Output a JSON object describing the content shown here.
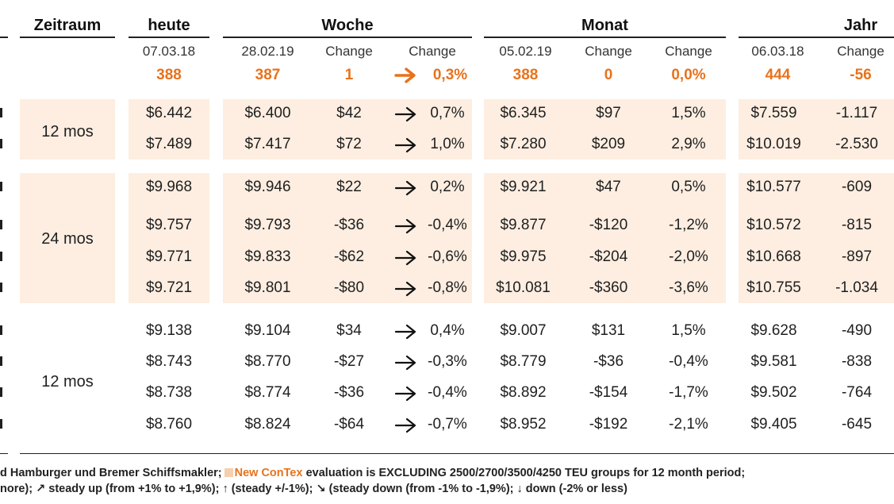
{
  "headers": {
    "zeitraum": "Zeitraum",
    "heute": "heute",
    "woche": "Woche",
    "monat": "Monat",
    "jahr": "Jahr"
  },
  "sub_headers": {
    "heute_date": "07.03.18",
    "woche_date": "28.02.19",
    "woche_change1": "Change",
    "woche_change2": "Change",
    "monat_date": "05.02.19",
    "monat_change1": "Change",
    "monat_change2": "Change",
    "jahr_date": "06.03.18",
    "jahr_change": "Change"
  },
  "index_row": {
    "heute": "388",
    "woche": "387",
    "woche_change": "1",
    "woche_pct": "0,3%",
    "monat": "388",
    "monat_change": "0",
    "monat_pct": "0,0%",
    "jahr": "444",
    "jahr_change": "-56"
  },
  "groups": [
    {
      "period": "12 mos",
      "shaded": true,
      "rows": [
        {
          "heute": "$6.442",
          "woche": "$6.400",
          "woche_change": "$42",
          "woche_pct": "0,7%",
          "monat": "$6.345",
          "monat_change": "$97",
          "monat_pct": "1,5%",
          "jahr": "$7.559",
          "jahr_change": "-1.117"
        },
        {
          "heute": "$7.489",
          "woche": "$7.417",
          "woche_change": "$72",
          "woche_pct": "1,0%",
          "monat": "$7.280",
          "monat_change": "$209",
          "monat_pct": "2,9%",
          "jahr": "$10.019",
          "jahr_change": "-2.530"
        }
      ]
    },
    {
      "period": "24 mos",
      "shaded": true,
      "rows": [
        {
          "heute": "$9.968",
          "woche": "$9.946",
          "woche_change": "$22",
          "woche_pct": "0,2%",
          "monat": "$9.921",
          "monat_change": "$47",
          "monat_pct": "0,5%",
          "jahr": "$10.577",
          "jahr_change": "-609"
        },
        {
          "heute": "$9.757",
          "woche": "$9.793",
          "woche_change": "-$36",
          "woche_pct": "-0,4%",
          "monat": "$9.877",
          "monat_change": "-$120",
          "monat_pct": "-1,2%",
          "jahr": "$10.572",
          "jahr_change": "-815"
        },
        {
          "heute": "$9.771",
          "woche": "$9.833",
          "woche_change": "-$62",
          "woche_pct": "-0,6%",
          "monat": "$9.975",
          "monat_change": "-$204",
          "monat_pct": "-2,0%",
          "jahr": "$10.668",
          "jahr_change": "-897"
        },
        {
          "heute": "$9.721",
          "woche": "$9.801",
          "woche_change": "-$80",
          "woche_pct": "-0,8%",
          "monat": "$10.081",
          "monat_change": "-$360",
          "monat_pct": "-3,6%",
          "jahr": "$10.755",
          "jahr_change": "-1.034"
        }
      ]
    },
    {
      "period": "12 mos",
      "shaded": false,
      "rows": [
        {
          "heute": "$9.138",
          "woche": "$9.104",
          "woche_change": "$34",
          "woche_pct": "0,4%",
          "monat": "$9.007",
          "monat_change": "$131",
          "monat_pct": "1,5%",
          "jahr": "$9.628",
          "jahr_change": "-490"
        },
        {
          "heute": "$8.743",
          "woche": "$8.770",
          "woche_change": "-$27",
          "woche_pct": "-0,3%",
          "monat": "$8.779",
          "monat_change": "-$36",
          "monat_pct": "-0,4%",
          "jahr": "$9.581",
          "jahr_change": "-838"
        },
        {
          "heute": "$8.738",
          "woche": "$8.774",
          "woche_change": "-$36",
          "woche_pct": "-0,4%",
          "monat": "$8.892",
          "monat_change": "-$154",
          "monat_pct": "-1,7%",
          "jahr": "$9.502",
          "jahr_change": "-764"
        },
        {
          "heute": "$8.760",
          "woche": "$8.824",
          "woche_change": "-$64",
          "woche_pct": "-0,7%",
          "monat": "$8.952",
          "monat_change": "-$192",
          "monat_pct": "-2,1%",
          "jahr": "$9.405",
          "jahr_change": "-645"
        }
      ]
    }
  ],
  "footer": {
    "line1_pre": "d Hamburger und Bremer Schiffsmakler;",
    "line1_brand": "New ConTex",
    "line1_post": "evaluation is EXCLUDING 2500/2700/3500/4250 TEU groups for 12 month period;",
    "line2": "nore); ↗ steady up (from +1% to +1,9%); ↑ (steady +/-1%); ↘ (steady down (from -1% to -1,9%); ↓ down (-2% or less)"
  },
  "colors": {
    "accent": "#e8721c",
    "shade": "#fdeee1",
    "text": "#1f1f1f"
  },
  "icons": {
    "trend_arrow": "arrow-right-icon"
  }
}
